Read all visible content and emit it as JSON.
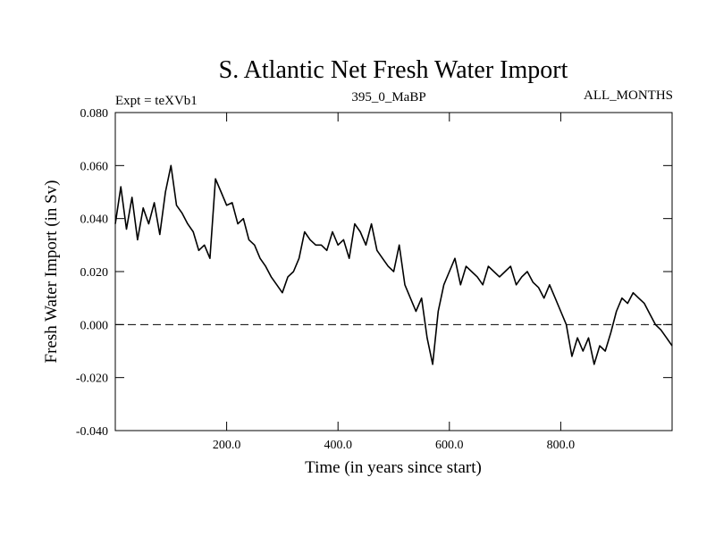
{
  "chart_data": {
    "type": "line",
    "title": "S. Atlantic Net Fresh Water Import",
    "subtitle_left": "Expt = teXVb1",
    "subtitle_center": "395_0_MaBP",
    "subtitle_right": "ALL_MONTHS",
    "xlabel": "Time (in years since start)",
    "ylabel": "Fresh Water Import (in Sv)",
    "xlim": [
      0,
      1000
    ],
    "ylim": [
      -0.04,
      0.08
    ],
    "x_ticks": [
      {
        "value": 200,
        "label": "200.0"
      },
      {
        "value": 400,
        "label": "400.0"
      },
      {
        "value": 600,
        "label": "600.0"
      },
      {
        "value": 800,
        "label": "800.0"
      }
    ],
    "y_ticks": [
      {
        "value": 0.08,
        "label": "0.080"
      },
      {
        "value": 0.06,
        "label": "0.060"
      },
      {
        "value": 0.04,
        "label": "0.040"
      },
      {
        "value": 0.02,
        "label": "0.020"
      },
      {
        "value": 0.0,
        "label": "0.000"
      },
      {
        "value": -0.02,
        "label": "-0.020"
      },
      {
        "value": -0.04,
        "label": "-0.040"
      }
    ],
    "reference_line": {
      "value": 0.0,
      "style": "dashed"
    },
    "series": [
      {
        "name": "Fresh Water Import",
        "x": [
          0,
          10,
          20,
          30,
          40,
          50,
          60,
          70,
          80,
          90,
          100,
          110,
          120,
          130,
          140,
          150,
          160,
          170,
          180,
          190,
          200,
          210,
          220,
          230,
          240,
          250,
          260,
          270,
          280,
          290,
          300,
          310,
          320,
          330,
          340,
          350,
          360,
          370,
          380,
          390,
          400,
          410,
          420,
          430,
          440,
          450,
          460,
          470,
          480,
          490,
          500,
          510,
          520,
          530,
          540,
          550,
          560,
          570,
          580,
          590,
          600,
          610,
          620,
          630,
          640,
          650,
          660,
          670,
          680,
          690,
          700,
          710,
          720,
          730,
          740,
          750,
          760,
          770,
          780,
          790,
          800,
          810,
          820,
          830,
          840,
          850,
          860,
          870,
          880,
          890,
          900,
          910,
          920,
          930,
          940,
          950,
          960,
          970,
          980,
          990,
          1000
        ],
        "values": [
          0.038,
          0.052,
          0.036,
          0.048,
          0.032,
          0.044,
          0.038,
          0.046,
          0.034,
          0.05,
          0.06,
          0.045,
          0.042,
          0.038,
          0.035,
          0.028,
          0.03,
          0.025,
          0.055,
          0.05,
          0.045,
          0.046,
          0.038,
          0.04,
          0.032,
          0.03,
          0.025,
          0.022,
          0.018,
          0.015,
          0.012,
          0.018,
          0.02,
          0.025,
          0.035,
          0.032,
          0.03,
          0.03,
          0.028,
          0.035,
          0.03,
          0.032,
          0.025,
          0.038,
          0.035,
          0.03,
          0.038,
          0.028,
          0.025,
          0.022,
          0.02,
          0.03,
          0.015,
          0.01,
          0.005,
          0.01,
          -0.005,
          -0.015,
          0.005,
          0.015,
          0.02,
          0.025,
          0.015,
          0.022,
          0.02,
          0.018,
          0.015,
          0.022,
          0.02,
          0.018,
          0.02,
          0.022,
          0.015,
          0.018,
          0.02,
          0.016,
          0.014,
          0.01,
          0.015,
          0.01,
          0.005,
          0.0,
          -0.012,
          -0.005,
          -0.01,
          -0.005,
          -0.015,
          -0.008,
          -0.01,
          -0.003,
          0.005,
          0.01,
          0.008,
          0.012,
          0.01,
          0.008,
          0.004,
          0.0,
          -0.002,
          -0.005,
          -0.008
        ]
      }
    ]
  }
}
